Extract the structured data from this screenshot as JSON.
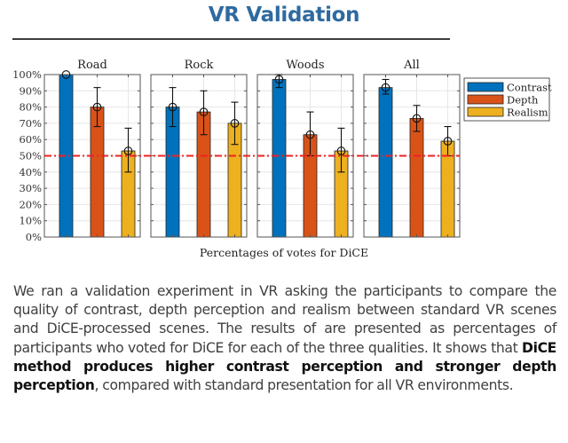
{
  "header": {
    "title": "VR Validation"
  },
  "chart_data": {
    "type": "bar",
    "xlabel": "Percentages of votes for DiCE",
    "ylabel": "",
    "ylim": [
      0,
      100
    ],
    "yticks": [
      0,
      10,
      20,
      30,
      40,
      50,
      60,
      70,
      80,
      90,
      100
    ],
    "ytick_labels": [
      "0%",
      "10%",
      "20%",
      "30%",
      "40%",
      "50%",
      "60%",
      "70%",
      "80%",
      "90%",
      "100%"
    ],
    "grid": true,
    "reference_line": {
      "value": 50,
      "style": "dash-dot",
      "color": "#ee2222"
    },
    "legend": {
      "position": "right",
      "entries": [
        "Contrast",
        "Depth",
        "Realism"
      ]
    },
    "series_colors": {
      "Contrast": "#0072bd",
      "Depth": "#d95319",
      "Realism": "#edb120"
    },
    "panels": [
      {
        "title": "Road",
        "series": [
          {
            "name": "Contrast",
            "value": 100,
            "err_low": 100,
            "err_high": 100
          },
          {
            "name": "Depth",
            "value": 80,
            "err_low": 68,
            "err_high": 92
          },
          {
            "name": "Realism",
            "value": 53,
            "err_low": 40,
            "err_high": 67
          }
        ]
      },
      {
        "title": "Rock",
        "series": [
          {
            "name": "Contrast",
            "value": 80,
            "err_low": 68,
            "err_high": 92
          },
          {
            "name": "Depth",
            "value": 77,
            "err_low": 63,
            "err_high": 90
          },
          {
            "name": "Realism",
            "value": 70,
            "err_low": 57,
            "err_high": 83
          }
        ]
      },
      {
        "title": "Woods",
        "series": [
          {
            "name": "Contrast",
            "value": 97,
            "err_low": 92,
            "err_high": 100
          },
          {
            "name": "Depth",
            "value": 63,
            "err_low": 50,
            "err_high": 77
          },
          {
            "name": "Realism",
            "value": 53,
            "err_low": 40,
            "err_high": 67
          }
        ]
      },
      {
        "title": "All",
        "series": [
          {
            "name": "Contrast",
            "value": 92,
            "err_low": 88,
            "err_high": 97
          },
          {
            "name": "Depth",
            "value": 73,
            "err_low": 65,
            "err_high": 81
          },
          {
            "name": "Realism",
            "value": 59,
            "err_low": 50,
            "err_high": 68
          }
        ]
      }
    ]
  },
  "description": {
    "text_before": "We ran a validation experiment in VR asking the participants to compare the quality of contrast, depth perception and realism between standard VR scenes and DiCE-processed scenes.  The results of are presented as percentages of participants who voted for DiCE for each of the three qualities. It shows that ",
    "text_bold": "DiCE method produces higher contrast perception and stronger depth perception",
    "text_after": ", compared with standard presentation for all VR environments."
  }
}
